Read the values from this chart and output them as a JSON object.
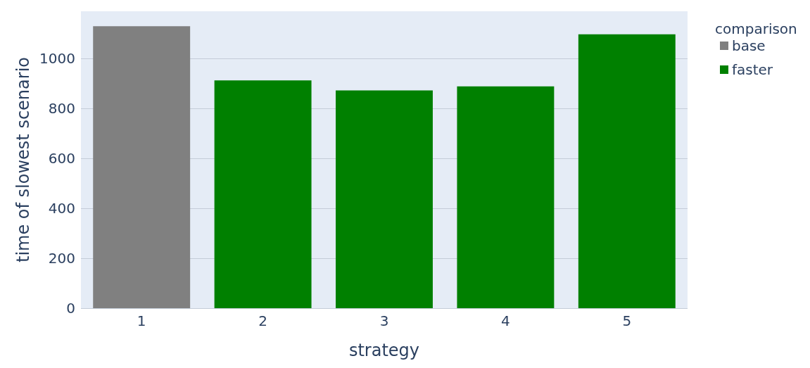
{
  "chart_data": {
    "type": "bar",
    "xlabel": "strategy",
    "ylabel": "time of slowest scenario",
    "legend_title": "comparison",
    "categories": [
      "1",
      "2",
      "3",
      "4",
      "5"
    ],
    "series": [
      {
        "name": "base",
        "color": "#808080",
        "values": [
          1130,
          null,
          null,
          null,
          null
        ]
      },
      {
        "name": "faster",
        "color": "#008000",
        "values": [
          null,
          913,
          873,
          889,
          1098
        ]
      }
    ],
    "ylim": [
      0,
      1190
    ],
    "yticks": [
      0,
      200,
      400,
      600,
      800,
      1000
    ],
    "grid": "y",
    "legend": "top right"
  }
}
